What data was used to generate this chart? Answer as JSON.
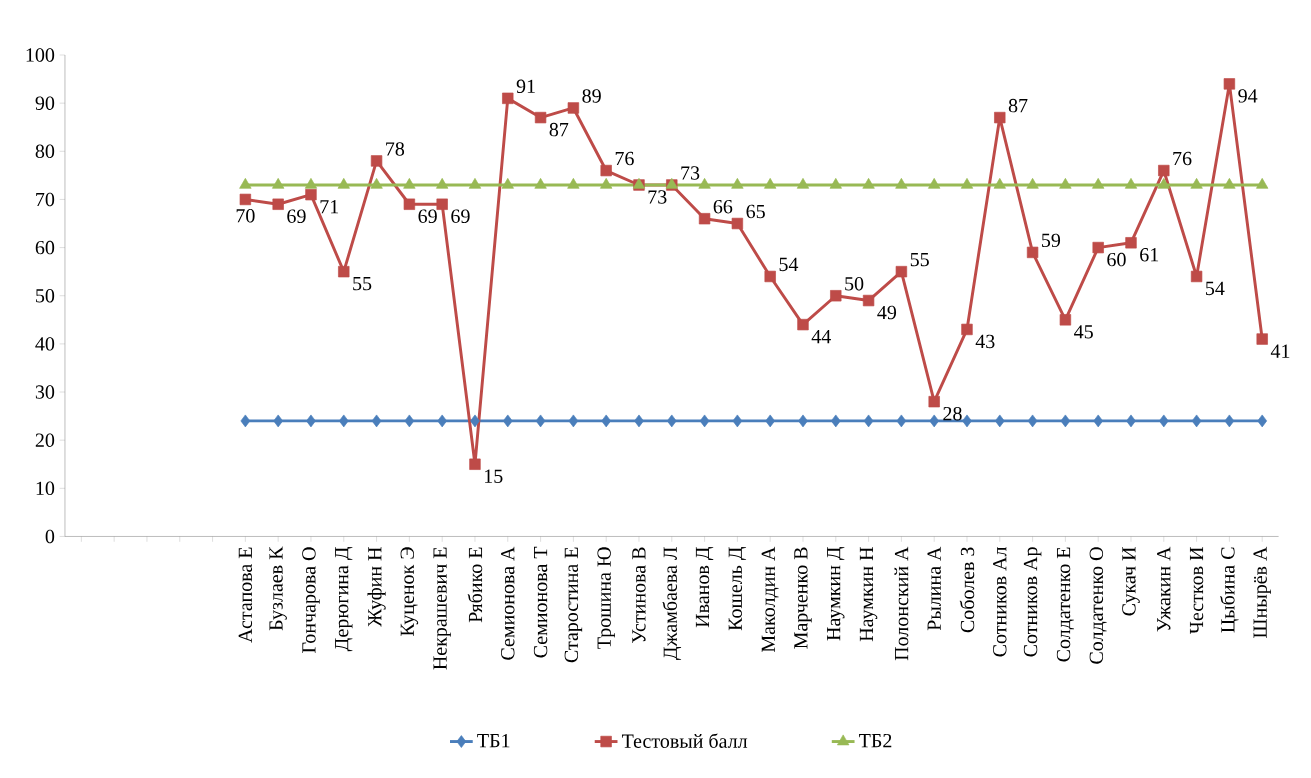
{
  "chart_data": {
    "type": "line",
    "categories": [
      null,
      null,
      null,
      null,
      null,
      "Астапова Е",
      "Бузлаев  К",
      "Гончарова О",
      "Дерюгина Д",
      "Жуфин Н",
      "Куценок Э",
      "Некрашевич Е",
      "Рябико Е",
      "Семионова А",
      "Семионова Т",
      "Старостина Е",
      "Трошина Ю",
      "Устинова В",
      "Джамбаева Л",
      "Иванов Д",
      "Кошель Д",
      "Маколдин  А",
      "Марченко В",
      "Наумкин Д",
      "Наумкин Н",
      "Полонский А",
      "Рылина А",
      "Соболев З",
      "Сотников Ал",
      "Сотников Ар",
      "Солдатенко Е",
      "Солдатенко О",
      "Сукач И",
      "Ужакин А",
      "Честков И",
      "Цыбина С",
      "Шнырёв А"
    ],
    "series": [
      {
        "name": "ТБ1",
        "color": "#4a7ebb",
        "marker": "diamond",
        "values": [
          null,
          null,
          null,
          null,
          null,
          24,
          24,
          24,
          24,
          24,
          24,
          24,
          24,
          24,
          24,
          24,
          24,
          24,
          24,
          24,
          24,
          24,
          24,
          24,
          24,
          24,
          24,
          24,
          24,
          24,
          24,
          24,
          24,
          24,
          24,
          24,
          24
        ]
      },
      {
        "name": "Тестовый балл",
        "color": "#be4b48",
        "marker": "square",
        "values": [
          null,
          null,
          null,
          null,
          null,
          70,
          69,
          71,
          55,
          78,
          69,
          69,
          15,
          91,
          87,
          89,
          76,
          73,
          73,
          66,
          65,
          54,
          44,
          50,
          49,
          55,
          28,
          43,
          87,
          59,
          45,
          60,
          61,
          76,
          54,
          94,
          41
        ],
        "value_labels": [
          null,
          null,
          null,
          null,
          null,
          "70",
          "69",
          "71",
          "55",
          "78",
          "69",
          "69",
          "15",
          "91",
          "87",
          "89",
          "76",
          "73",
          "73",
          "66",
          "65",
          "54",
          "44",
          "50",
          "49",
          "55",
          "28",
          "43",
          "87",
          "59",
          "45",
          "60",
          "61",
          "76",
          "54",
          "94",
          "41"
        ]
      },
      {
        "name": "ТБ2",
        "color": "#98b954",
        "marker": "triangle",
        "values": [
          null,
          null,
          null,
          null,
          null,
          73,
          73,
          73,
          73,
          73,
          73,
          73,
          73,
          73,
          73,
          73,
          73,
          73,
          73,
          73,
          73,
          73,
          73,
          73,
          73,
          73,
          73,
          73,
          73,
          73,
          73,
          73,
          73,
          73,
          73,
          73,
          73
        ]
      }
    ],
    "ylim": [
      0,
      100
    ],
    "yticks": [
      0,
      10,
      20,
      30,
      40,
      50,
      60,
      70,
      80,
      90,
      100
    ],
    "grid": false,
    "legend": "bottom"
  }
}
